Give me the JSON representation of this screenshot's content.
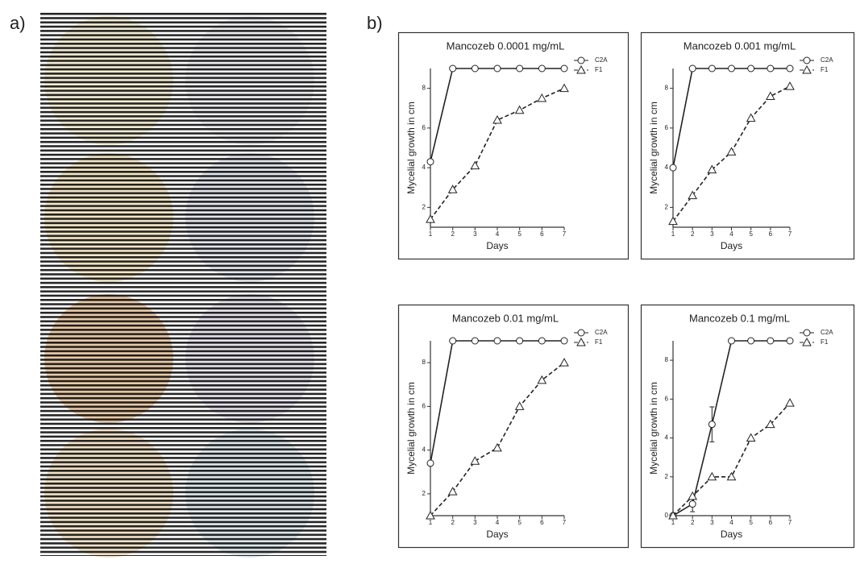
{
  "panels": {
    "a": "a)",
    "b": "b)"
  },
  "chart_data": [
    {
      "type": "line",
      "title": "Mancozeb 0.0001 mg/mL",
      "x_label": "Days",
      "y_label": "Mycelial growth in cm",
      "x": [
        1,
        2,
        3,
        4,
        5,
        6,
        7
      ],
      "xlim": [
        1,
        7
      ],
      "xticks": [
        1,
        2,
        3,
        4,
        5,
        6,
        7
      ],
      "ylim": [
        1,
        9
      ],
      "yticks": [
        2,
        4,
        6,
        8
      ],
      "legend": "right",
      "series": [
        {
          "name": "C2A",
          "color": "#222222",
          "marker": "circle",
          "line_style": "solid",
          "values": [
            4.3,
            9,
            9,
            9,
            9,
            9,
            9
          ]
        },
        {
          "name": "F1",
          "color": "#222222",
          "marker": "triangle",
          "line_style": "dashed",
          "values": [
            1.4,
            2.9,
            4.1,
            6.4,
            6.9,
            7.5,
            8.0
          ]
        }
      ]
    },
    {
      "type": "line",
      "title": "Mancozeb 0.001 mg/mL",
      "x_label": "Days",
      "y_label": "Mycelial growth in cm",
      "x": [
        1,
        2,
        3,
        4,
        5,
        6,
        7
      ],
      "xlim": [
        1,
        7
      ],
      "xticks": [
        1,
        2,
        3,
        4,
        5,
        6,
        7
      ],
      "ylim": [
        1,
        9
      ],
      "yticks": [
        2,
        4,
        6,
        8
      ],
      "legend": "right",
      "series": [
        {
          "name": "C2A",
          "color": "#222222",
          "marker": "circle",
          "line_style": "solid",
          "values": [
            4.0,
            9,
            9,
            9,
            9,
            9,
            9
          ]
        },
        {
          "name": "F1",
          "color": "#222222",
          "marker": "triangle",
          "line_style": "dashed",
          "values": [
            1.3,
            2.6,
            3.9,
            4.8,
            6.5,
            7.6,
            8.1
          ]
        }
      ]
    },
    {
      "type": "line",
      "title": "Mancozeb 0.01 mg/mL",
      "x_label": "Days",
      "y_label": "Mycelial growth in cm",
      "x": [
        1,
        2,
        3,
        4,
        5,
        6,
        7
      ],
      "xlim": [
        1,
        7
      ],
      "xticks": [
        1,
        2,
        3,
        4,
        5,
        6,
        7
      ],
      "ylim": [
        1,
        9
      ],
      "yticks": [
        2,
        4,
        6,
        8
      ],
      "legend": "right",
      "series": [
        {
          "name": "C2A",
          "color": "#222222",
          "marker": "circle",
          "line_style": "solid",
          "values": [
            3.4,
            9,
            9,
            9,
            9,
            9,
            9
          ]
        },
        {
          "name": "F1",
          "color": "#222222",
          "marker": "triangle",
          "line_style": "dashed",
          "values": [
            1.0,
            2.1,
            3.5,
            4.1,
            6.0,
            7.2,
            8.0
          ]
        }
      ]
    },
    {
      "type": "line",
      "title": "Mancozeb 0.1 mg/mL",
      "x_label": "Days",
      "y_label": "Mycelial growth in cm",
      "x": [
        1,
        2,
        3,
        4,
        5,
        6,
        7
      ],
      "xlim": [
        1,
        7
      ],
      "xticks": [
        1,
        2,
        3,
        4,
        5,
        6,
        7
      ],
      "ylim": [
        0,
        9
      ],
      "yticks": [
        0,
        2,
        4,
        6,
        8
      ],
      "legend": "right",
      "series": [
        {
          "name": "C2A",
          "color": "#222222",
          "marker": "circle",
          "line_style": "solid",
          "values": [
            0,
            0.6,
            4.7,
            9,
            9,
            9,
            9
          ],
          "errors": [
            null,
            0.4,
            0.9,
            null,
            null,
            null,
            null
          ]
        },
        {
          "name": "F1",
          "color": "#222222",
          "marker": "triangle",
          "line_style": "dashed",
          "values": [
            0,
            1.0,
            2.0,
            2.0,
            4.0,
            4.7,
            5.8
          ]
        }
      ]
    }
  ]
}
